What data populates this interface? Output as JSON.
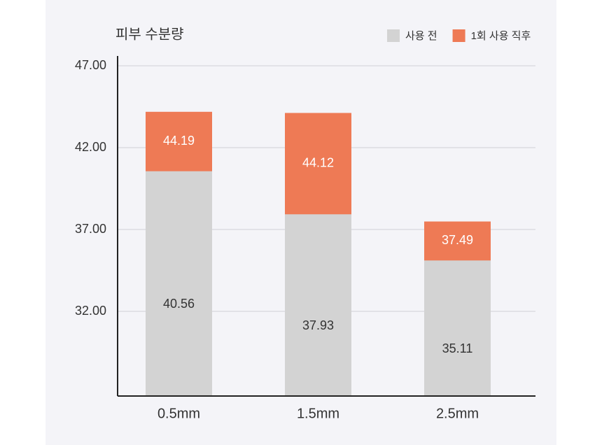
{
  "chart_data": {
    "type": "bar",
    "title": "피부 수분량",
    "categories": [
      "0.5mm",
      "1.5mm",
      "2.5mm"
    ],
    "series": [
      {
        "name": "사용 전",
        "color": "#d3d3d3",
        "values": [
          40.56,
          37.93,
          35.11
        ]
      },
      {
        "name": "1회 사용 직후",
        "color": "#ee7a55",
        "values": [
          44.19,
          44.12,
          37.49
        ]
      }
    ],
    "ylim": [
      26.83,
      47.6
    ],
    "yticks": [
      {
        "value": 32,
        "label": "32.00"
      },
      {
        "value": 37,
        "label": "37.00"
      },
      {
        "value": 42,
        "label": "42.00"
      },
      {
        "value": 47,
        "label": "47.00"
      }
    ],
    "grid": true,
    "legend": "top-right"
  }
}
